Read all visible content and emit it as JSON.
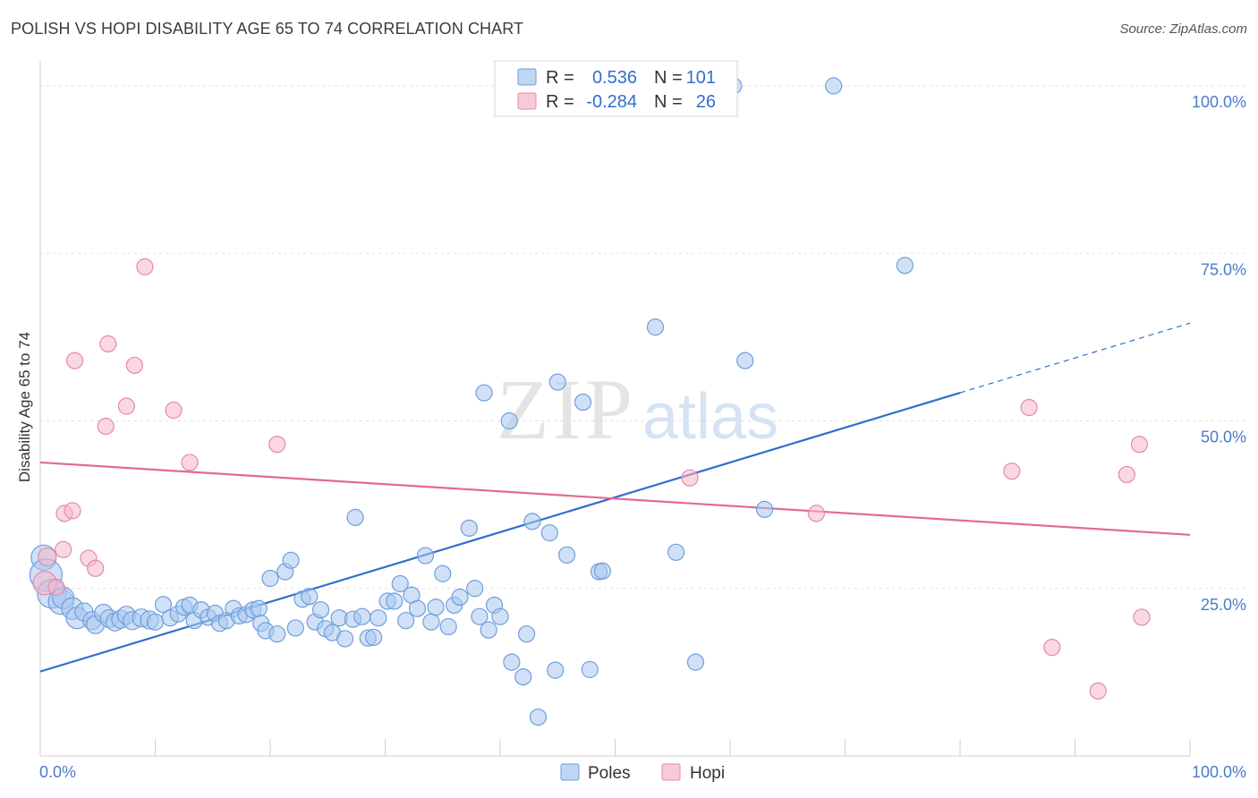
{
  "title": "POLISH VS HOPI DISABILITY AGE 65 TO 74 CORRELATION CHART",
  "source": "Source: ZipAtlas.com",
  "watermark": {
    "zip": "ZIP",
    "atlas": "atlas"
  },
  "legend": {
    "rows": [
      {
        "r_label": "R =",
        "r_value": "0.536",
        "n_label": "N =",
        "n_value": "101",
        "color": "#a9c8f0",
        "stroke": "#6f9edb"
      },
      {
        "r_label": "R =",
        "r_value": "-0.284",
        "n_label": "N =",
        "n_value": "26",
        "color": "#f5b8ca",
        "stroke": "#e58aa6"
      }
    ]
  },
  "bottom_legend": [
    {
      "label": "Poles",
      "color": "#a9c8f0",
      "stroke": "#6f9edb"
    },
    {
      "label": "Hopi",
      "color": "#f5b8ca",
      "stroke": "#e58aa6"
    }
  ],
  "chart_data": {
    "type": "scatter",
    "ylabel": "Disability Age 65 to 74",
    "xlim": [
      0,
      100
    ],
    "ylim": [
      0,
      100
    ],
    "x_tick_labels": [
      "0.0%",
      "100.0%"
    ],
    "y_tick_labels": [
      {
        "value": 25,
        "label": "25.0%"
      },
      {
        "value": 50,
        "label": "50.0%"
      },
      {
        "value": 75,
        "label": "75.0%"
      },
      {
        "value": 100,
        "label": "100.0%"
      }
    ],
    "series": [
      {
        "name": "Poles",
        "color": "#a9c8f0",
        "stroke": "#6f9edb",
        "line_color": "#2f6fcf",
        "trend": {
          "x0": 0,
          "y0": 12.6,
          "x1": 80,
          "y1": 54.2,
          "dash_to_x": 100,
          "dash_to_y": 64.6
        },
        "points": [
          [
            0.3,
            29.6,
            14
          ],
          [
            0.5,
            27,
            18
          ],
          [
            1,
            24.2,
            16
          ],
          [
            1.8,
            23,
            14
          ],
          [
            2,
            23.6,
            12
          ],
          [
            2.8,
            22,
            12
          ],
          [
            3.2,
            20.6,
            12
          ],
          [
            3.8,
            21.5,
            10
          ],
          [
            4.5,
            20.2,
            10
          ],
          [
            4.8,
            19.6,
            10
          ],
          [
            5.5,
            21.3,
            10
          ],
          [
            6,
            20.5,
            10
          ],
          [
            6.5,
            20,
            10
          ],
          [
            7,
            20.4,
            10
          ],
          [
            7.5,
            21,
            10
          ],
          [
            8,
            20.2,
            10
          ],
          [
            8.8,
            20.6,
            10
          ],
          [
            9.5,
            20.3,
            10
          ],
          [
            10,
            20,
            9
          ],
          [
            10.7,
            22.6,
            9
          ],
          [
            11.3,
            20.6,
            9
          ],
          [
            12,
            21.2,
            9
          ],
          [
            12.5,
            22.2,
            9
          ],
          [
            13,
            22.5,
            9
          ],
          [
            13.4,
            20.2,
            9
          ],
          [
            14,
            21.8,
            9
          ],
          [
            14.6,
            20.7,
            9
          ],
          [
            15.2,
            21.3,
            9
          ],
          [
            15.6,
            19.8,
            9
          ],
          [
            16.2,
            20.2,
            9
          ],
          [
            16.8,
            22,
            9
          ],
          [
            17.3,
            20.9,
            9
          ],
          [
            17.9,
            21.1,
            9
          ],
          [
            18.5,
            21.8,
            9
          ],
          [
            19,
            22,
            9
          ],
          [
            19.2,
            19.8,
            9
          ],
          [
            19.6,
            18.7,
            9
          ],
          [
            20,
            26.5,
            9
          ],
          [
            20.6,
            18.2,
            9
          ],
          [
            21.3,
            27.5,
            9
          ],
          [
            21.8,
            29.2,
            9
          ],
          [
            22.2,
            19.1,
            9
          ],
          [
            22.8,
            23.4,
            9
          ],
          [
            23.4,
            23.8,
            9
          ],
          [
            23.9,
            20,
            9
          ],
          [
            24.4,
            21.8,
            9
          ],
          [
            24.8,
            19,
            9
          ],
          [
            25.4,
            18.4,
            9
          ],
          [
            26,
            20.6,
            9
          ],
          [
            26.5,
            17.5,
            9
          ],
          [
            27.2,
            20.4,
            9
          ],
          [
            27.4,
            35.6,
            9
          ],
          [
            28,
            20.8,
            9
          ],
          [
            28.5,
            17.6,
            9
          ],
          [
            29,
            17.7,
            9
          ],
          [
            29.4,
            20.6,
            9
          ],
          [
            30.2,
            23.1,
            9
          ],
          [
            30.8,
            23.1,
            9
          ],
          [
            31.3,
            25.7,
            9
          ],
          [
            31.8,
            20.2,
            9
          ],
          [
            32.3,
            24,
            9
          ],
          [
            32.8,
            22,
            9
          ],
          [
            33.5,
            29.9,
            9
          ],
          [
            34,
            20,
            9
          ],
          [
            34.4,
            22.2,
            9
          ],
          [
            35,
            27.2,
            9
          ],
          [
            35.5,
            19.3,
            9
          ],
          [
            36,
            22.5,
            9
          ],
          [
            36.5,
            23.7,
            9
          ],
          [
            37.3,
            34,
            9
          ],
          [
            37.8,
            25,
            9
          ],
          [
            38.2,
            20.8,
            9
          ],
          [
            38.6,
            54.2,
            9
          ],
          [
            39,
            18.8,
            9
          ],
          [
            39.5,
            22.5,
            9
          ],
          [
            40,
            20.8,
            9
          ],
          [
            40.8,
            50,
            9
          ],
          [
            41,
            14,
            9
          ],
          [
            42,
            11.8,
            9
          ],
          [
            42.3,
            18.2,
            9
          ],
          [
            42.8,
            35,
            9
          ],
          [
            43.3,
            5.8,
            9
          ],
          [
            44.3,
            33.3,
            9
          ],
          [
            44.8,
            12.8,
            9
          ],
          [
            45,
            55.8,
            9
          ],
          [
            45.8,
            30,
            9
          ],
          [
            47.2,
            52.8,
            9
          ],
          [
            47.8,
            12.9,
            9
          ],
          [
            48.6,
            27.5,
            9
          ],
          [
            48.9,
            27.6,
            9
          ],
          [
            52.4,
            100,
            9
          ],
          [
            53.5,
            64,
            9
          ],
          [
            55.3,
            30.4,
            9
          ],
          [
            57,
            14,
            9
          ],
          [
            60.3,
            100,
            9
          ],
          [
            61.3,
            59,
            9
          ],
          [
            63,
            36.8,
            9
          ],
          [
            69,
            100,
            9
          ],
          [
            75.2,
            73.2,
            9
          ],
          [
            46.8,
            100,
            9
          ],
          [
            54.6,
            100,
            9
          ]
        ]
      },
      {
        "name": "Hopi",
        "color": "#f5b8ca",
        "stroke": "#e58aa6",
        "line_color": "#e06a92",
        "trend": {
          "x0": 0,
          "y0": 43.8,
          "x1": 100,
          "y1": 33
        },
        "points": [
          [
            0.4,
            25.8,
            13
          ],
          [
            0.6,
            29.7,
            10
          ],
          [
            1.4,
            25.2,
            9
          ],
          [
            2,
            30.8,
            9
          ],
          [
            2.1,
            36.2,
            9
          ],
          [
            2.8,
            36.6,
            9
          ],
          [
            3,
            59,
            9
          ],
          [
            4.2,
            29.5,
            9
          ],
          [
            4.8,
            28,
            9
          ],
          [
            5.7,
            49.2,
            9
          ],
          [
            5.9,
            61.5,
            9
          ],
          [
            7.5,
            52.2,
            9
          ],
          [
            8.2,
            58.3,
            9
          ],
          [
            9.1,
            73,
            9
          ],
          [
            11.6,
            51.6,
            9
          ],
          [
            13,
            43.8,
            9
          ],
          [
            20.6,
            46.5,
            9
          ],
          [
            56.5,
            41.5,
            9
          ],
          [
            67.5,
            36.2,
            9
          ],
          [
            84.5,
            42.5,
            9
          ],
          [
            86,
            52,
            9
          ],
          [
            88,
            16.2,
            9
          ],
          [
            92,
            9.7,
            9
          ],
          [
            94.5,
            42,
            9
          ],
          [
            95.6,
            46.5,
            9
          ],
          [
            95.8,
            20.7,
            9
          ]
        ]
      }
    ]
  }
}
